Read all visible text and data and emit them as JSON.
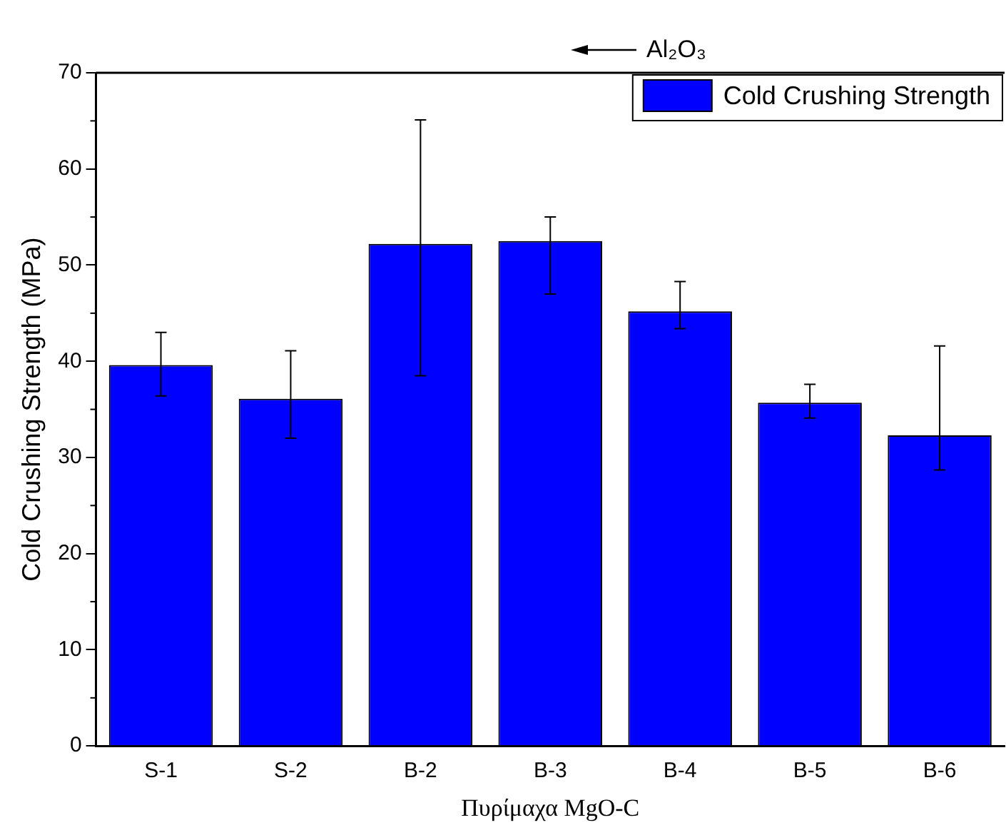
{
  "chart_data": {
    "type": "bar",
    "categories": [
      "S-1",
      "S-2",
      "B-2",
      "B-3",
      "B-4",
      "B-5",
      "B-6"
    ],
    "series": [
      {
        "name": "Cold Crushing Strength",
        "color": "#0000ff",
        "values": [
          39.6,
          36.1,
          52.2,
          52.5,
          45.2,
          35.7,
          32.3
        ],
        "errors": [
          [
            36.4,
            43.0
          ],
          [
            32.0,
            41.1
          ],
          [
            38.5,
            65.1
          ],
          [
            47.0,
            55.0
          ],
          [
            43.4,
            48.3
          ],
          [
            34.1,
            37.6
          ],
          [
            28.7,
            41.6
          ]
        ]
      }
    ],
    "ylim": [
      0,
      70
    ],
    "yticks": [
      0,
      10,
      20,
      30,
      40,
      50,
      60,
      70
    ],
    "ylabel": "Cold Crushing Strength (MPa)",
    "xlabel": "Πυρίμαχα MgO-C",
    "annotations": [
      "Al₂O₃"
    ],
    "legend": "top right",
    "grid": false
  }
}
